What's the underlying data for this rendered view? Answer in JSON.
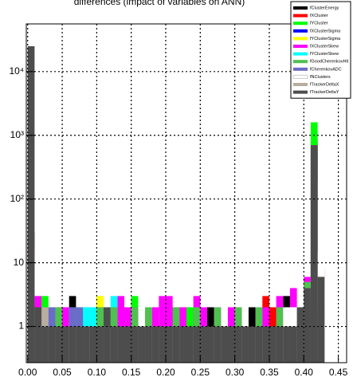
{
  "chart_data": {
    "type": "histogram",
    "title": "differences (impact of variables on ANN)",
    "bins": [
      0,
      0.01,
      0.02,
      0.03,
      0.04,
      0.05,
      0.06,
      0.07,
      0.08,
      0.09,
      0.1,
      0.11,
      0.12,
      0.13,
      0.14,
      0.15,
      0.16,
      0.17,
      0.18,
      0.19,
      0.2,
      0.21,
      0.22,
      0.23,
      0.24,
      0.25,
      0.26,
      0.27,
      0.28,
      0.29,
      0.3,
      0.31,
      0.32,
      0.33,
      0.34,
      0.35,
      0.36,
      0.37,
      0.38,
      0.39,
      0.4,
      0.41,
      0.42,
      0.43,
      0.44,
      0.45
    ],
    "series": [
      {
        "name": "fClusterEnergy",
        "color": "#000000",
        "values": [
          30,
          2,
          0,
          1,
          2,
          0,
          3,
          1,
          0,
          1,
          2,
          0,
          1,
          1,
          0,
          0,
          1,
          0,
          0,
          1,
          2,
          0,
          1,
          0,
          1,
          1,
          2,
          0,
          1,
          0,
          1,
          0,
          2,
          0,
          1,
          1,
          0,
          3,
          2,
          1,
          4,
          800,
          6,
          0,
          0
        ]
      },
      {
        "name": "fXCluster",
        "color": "#ff0000",
        "values": [
          15,
          1,
          1,
          0,
          1,
          2,
          0,
          1,
          1,
          0,
          1,
          1,
          0,
          2,
          0,
          1,
          0,
          1,
          1,
          0,
          1,
          2,
          0,
          1,
          1,
          0,
          1,
          1,
          0,
          2,
          1,
          1,
          0,
          1,
          3,
          2,
          1,
          1,
          3,
          2,
          5,
          900,
          4,
          0,
          0
        ]
      },
      {
        "name": "fYCluster",
        "color": "#00ff00",
        "values": [
          12,
          2,
          3,
          1,
          0,
          1,
          2,
          0,
          1,
          1,
          3,
          1,
          0,
          1,
          2,
          3,
          1,
          0,
          1,
          1,
          0,
          1,
          1,
          2,
          0,
          1,
          0,
          1,
          1,
          0,
          2,
          1,
          1,
          0,
          1,
          1,
          2,
          0,
          1,
          3,
          4,
          1600,
          5,
          0,
          0
        ]
      },
      {
        "name": "fXClusterSigma",
        "color": "#0000ff",
        "values": [
          10,
          1,
          1,
          0,
          2,
          1,
          1,
          2,
          1,
          0,
          0,
          1,
          1,
          0,
          1,
          1,
          0,
          1,
          0,
          1,
          1,
          0,
          1,
          1,
          0,
          1,
          1,
          0,
          1,
          1,
          0,
          1,
          1,
          0,
          1,
          1,
          0,
          1,
          1,
          2,
          3,
          500,
          3,
          0,
          0
        ]
      },
      {
        "name": "fYClusterSigma",
        "color": "#ffff00",
        "values": [
          8,
          1,
          2,
          1,
          1,
          0,
          1,
          2,
          2,
          1,
          3,
          1,
          1,
          0,
          1,
          1,
          0,
          1,
          1,
          0,
          1,
          1,
          0,
          1,
          1,
          0,
          1,
          1,
          0,
          1,
          1,
          0,
          1,
          1,
          0,
          1,
          1,
          2,
          1,
          2,
          3,
          400,
          2,
          0,
          0
        ]
      },
      {
        "name": "fXClusterSkew",
        "color": "#ff00ff",
        "values": [
          18,
          3,
          2,
          1,
          1,
          2,
          1,
          1,
          2,
          1,
          2,
          1,
          1,
          3,
          2,
          2,
          1,
          1,
          2,
          3,
          3,
          2,
          2,
          1,
          3,
          2,
          1,
          2,
          1,
          2,
          2,
          1,
          1,
          2,
          2,
          1,
          3,
          2,
          4,
          3,
          6,
          700,
          8,
          0,
          0
        ]
      },
      {
        "name": "fYClusterSkew",
        "color": "#00ffff",
        "values": [
          9,
          1,
          1,
          2,
          1,
          1,
          2,
          1,
          2,
          2,
          1,
          2,
          3,
          1,
          1,
          1,
          0,
          1,
          1,
          0,
          1,
          0,
          1,
          1,
          0,
          1,
          1,
          0,
          1,
          1,
          1,
          0,
          1,
          1,
          0,
          1,
          1,
          1,
          2,
          1,
          3,
          300,
          2,
          0,
          0
        ]
      },
      {
        "name": "fGoodCherenkovHit",
        "color": "#4fc14f",
        "values": [
          11,
          2,
          1,
          1,
          2,
          1,
          1,
          2,
          1,
          1,
          2,
          1,
          2,
          1,
          1,
          2,
          1,
          2,
          1,
          1,
          1,
          2,
          1,
          1,
          2,
          1,
          1,
          2,
          1,
          1,
          2,
          1,
          1,
          2,
          1,
          1,
          2,
          1,
          2,
          2,
          5,
          600,
          4,
          0,
          0
        ]
      },
      {
        "name": "fCherenkovADC",
        "color": "#6b6bc8",
        "values": [
          7,
          1,
          1,
          2,
          1,
          1,
          2,
          2,
          1,
          1,
          1,
          0,
          1,
          1,
          0,
          1,
          1,
          0,
          1,
          1,
          0,
          1,
          1,
          0,
          1,
          1,
          0,
          1,
          1,
          0,
          1,
          1,
          0,
          1,
          1,
          0,
          1,
          1,
          2,
          1,
          2,
          250,
          2,
          0,
          0
        ]
      },
      {
        "name": "fNClusters",
        "color": "#ffffff",
        "values": [
          6,
          1,
          1,
          0,
          1,
          1,
          1,
          1,
          0,
          1,
          1,
          1,
          0,
          1,
          1,
          0,
          1,
          1,
          0,
          1,
          1,
          0,
          1,
          1,
          0,
          1,
          1,
          0,
          1,
          1,
          0,
          1,
          1,
          0,
          1,
          1,
          1,
          2,
          2,
          3,
          4,
          200,
          15,
          0,
          0
        ]
      },
      {
        "name": "fTrackerDeltaX",
        "color": "#b8aea0",
        "values": [
          14,
          1,
          2,
          1,
          1,
          1,
          1,
          1,
          1,
          1,
          1,
          0,
          1,
          1,
          1,
          1,
          1,
          0,
          1,
          1,
          1,
          1,
          1,
          0,
          1,
          1,
          1,
          1,
          1,
          0,
          1,
          1,
          1,
          1,
          1,
          1,
          1,
          1,
          1,
          1,
          2,
          350,
          2,
          0,
          0
        ]
      },
      {
        "name": "fTrackerDeltaY",
        "color": "#4d4d4d",
        "values": [
          25000,
          2,
          1,
          1,
          1,
          1,
          1,
          1,
          1,
          1,
          1,
          2,
          1,
          1,
          1,
          1,
          1,
          1,
          1,
          1,
          1,
          1,
          1,
          1,
          1,
          1,
          1,
          1,
          1,
          1,
          1,
          1,
          1,
          1,
          1,
          1,
          1,
          1,
          1,
          2,
          4,
          700,
          6,
          0,
          0
        ]
      }
    ],
    "xlim": [
      -0.002,
      0.462
    ],
    "xticks": [
      {
        "value": 0,
        "label": "0.00"
      },
      {
        "value": 0.05,
        "label": "0.05"
      },
      {
        "value": 0.1,
        "label": "0.10"
      },
      {
        "value": 0.15,
        "label": "0.15"
      },
      {
        "value": 0.2,
        "label": "0.20"
      },
      {
        "value": 0.25,
        "label": "0.25"
      },
      {
        "value": 0.3,
        "label": "0.30"
      },
      {
        "value": 0.35,
        "label": "0.35"
      },
      {
        "value": 0.4,
        "label": "0.40"
      },
      {
        "value": 0.45,
        "label": "0.45"
      }
    ],
    "ylim": [
      0.27,
      56000
    ],
    "yticks": [
      1,
      10,
      {
        "value": 100,
        "label": "10²"
      },
      {
        "value": 1000,
        "label": "10³"
      },
      {
        "value": 10000,
        "label": "10⁴"
      }
    ],
    "log_y": true,
    "grid": true,
    "legend": "upper right"
  }
}
